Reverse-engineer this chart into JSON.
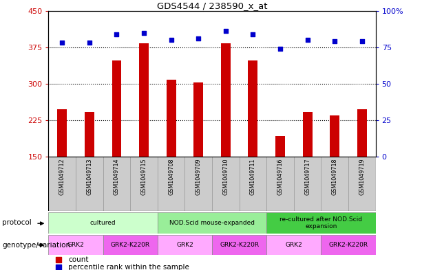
{
  "title": "GDS4544 / 238590_x_at",
  "samples": [
    "GSM1049712",
    "GSM1049713",
    "GSM1049714",
    "GSM1049715",
    "GSM1049708",
    "GSM1049709",
    "GSM1049710",
    "GSM1049711",
    "GSM1049716",
    "GSM1049717",
    "GSM1049718",
    "GSM1049719"
  ],
  "counts": [
    248,
    242,
    348,
    383,
    308,
    302,
    383,
    348,
    192,
    242,
    235,
    248
  ],
  "percentile_ranks": [
    78,
    78,
    84,
    85,
    80,
    81,
    86,
    84,
    74,
    80,
    79,
    79
  ],
  "ylim_left": [
    150,
    450
  ],
  "ylim_right": [
    0,
    100
  ],
  "yticks_left": [
    150,
    225,
    300,
    375,
    450
  ],
  "yticks_right": [
    0,
    25,
    50,
    75,
    100
  ],
  "ytick_labels_right": [
    "0",
    "25",
    "50",
    "75",
    "100%"
  ],
  "bar_color": "#cc0000",
  "dot_color": "#0000cc",
  "protocol_row": {
    "label": "protocol",
    "groups": [
      {
        "text": "cultured",
        "start": 0,
        "end": 4,
        "color": "#ccffcc"
      },
      {
        "text": "NOD.Scid mouse-expanded",
        "start": 4,
        "end": 8,
        "color": "#99ee99"
      },
      {
        "text": "re-cultured after NOD.Scid\nexpansion",
        "start": 8,
        "end": 12,
        "color": "#44cc44"
      }
    ]
  },
  "genotype_row": {
    "label": "genotype/variation",
    "groups": [
      {
        "text": "GRK2",
        "start": 0,
        "end": 2,
        "color": "#ffaaff"
      },
      {
        "text": "GRK2-K220R",
        "start": 2,
        "end": 4,
        "color": "#ee66ee"
      },
      {
        "text": "GRK2",
        "start": 4,
        "end": 6,
        "color": "#ffaaff"
      },
      {
        "text": "GRK2-K220R",
        "start": 6,
        "end": 8,
        "color": "#ee66ee"
      },
      {
        "text": "GRK2",
        "start": 8,
        "end": 10,
        "color": "#ffaaff"
      },
      {
        "text": "GRK2-K220R",
        "start": 10,
        "end": 12,
        "color": "#ee66ee"
      }
    ]
  },
  "legend_count_color": "#cc0000",
  "legend_dot_color": "#0000cc",
  "bg_color": "#ffffff",
  "plot_bg_color": "#ffffff",
  "border_color": "#000000",
  "xlabel_bg": "#cccccc",
  "bar_width": 0.35
}
